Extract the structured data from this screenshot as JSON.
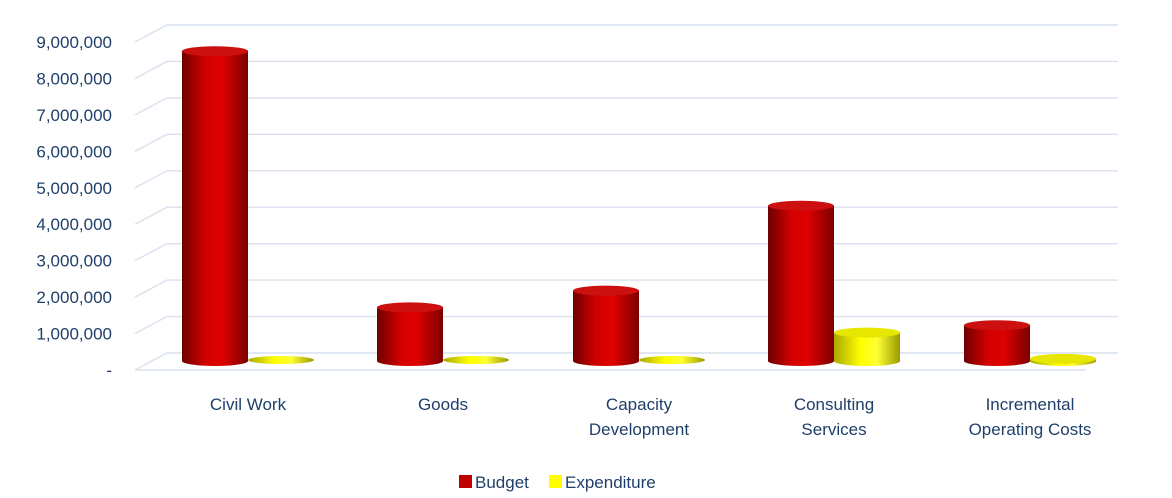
{
  "chart_data": {
    "type": "bar",
    "categories": [
      [
        "Civil Work"
      ],
      [
        "Goods"
      ],
      [
        "Capacity",
        "Development"
      ],
      [
        "Consulting",
        "Services"
      ],
      [
        "Incremental",
        "Operating Costs"
      ]
    ],
    "series": [
      {
        "name": "Budget",
        "values": [
          8500000,
          1470000,
          1930000,
          4260000,
          980000
        ],
        "color": "#c00000"
      },
      {
        "name": "Expenditure",
        "values": [
          0,
          0,
          0,
          780000,
          60000
        ],
        "color": "#ffff00"
      }
    ],
    "yticks": [
      "-",
      "1,000,000",
      "2,000,000",
      "3,000,000",
      "4,000,000",
      "5,000,000",
      "6,000,000",
      "7,000,000",
      "8,000,000",
      "9,000,000"
    ],
    "ylim": [
      0,
      9000000
    ],
    "grid": true,
    "legend": "bottom",
    "title": "",
    "xlabel": "",
    "ylabel": ""
  },
  "colors": {
    "axis_text": "#1f3f6a",
    "grid": "#d9e1ee"
  }
}
